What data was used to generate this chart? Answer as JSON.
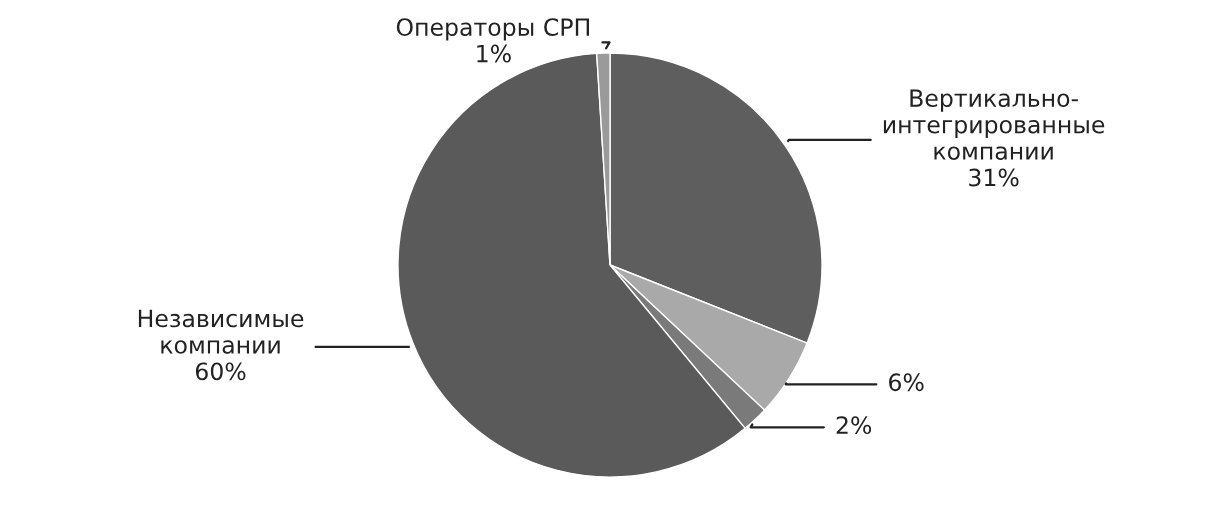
{
  "chart_data": {
    "type": "pie",
    "categories": [
      "Вертикально-\nинтегрированные\nкомпании",
      null,
      null,
      "Независимые\nкомпании",
      "Операторы СРП"
    ],
    "values": [
      31,
      6,
      2,
      60,
      1
    ],
    "value_labels": [
      "31%",
      "6%",
      "2%",
      "60%",
      "1%"
    ],
    "colors": [
      "#5e5e5e",
      "#a9a9a9",
      "#7a7a7a",
      "#5a5a5a",
      "#9a9a9a"
    ]
  }
}
